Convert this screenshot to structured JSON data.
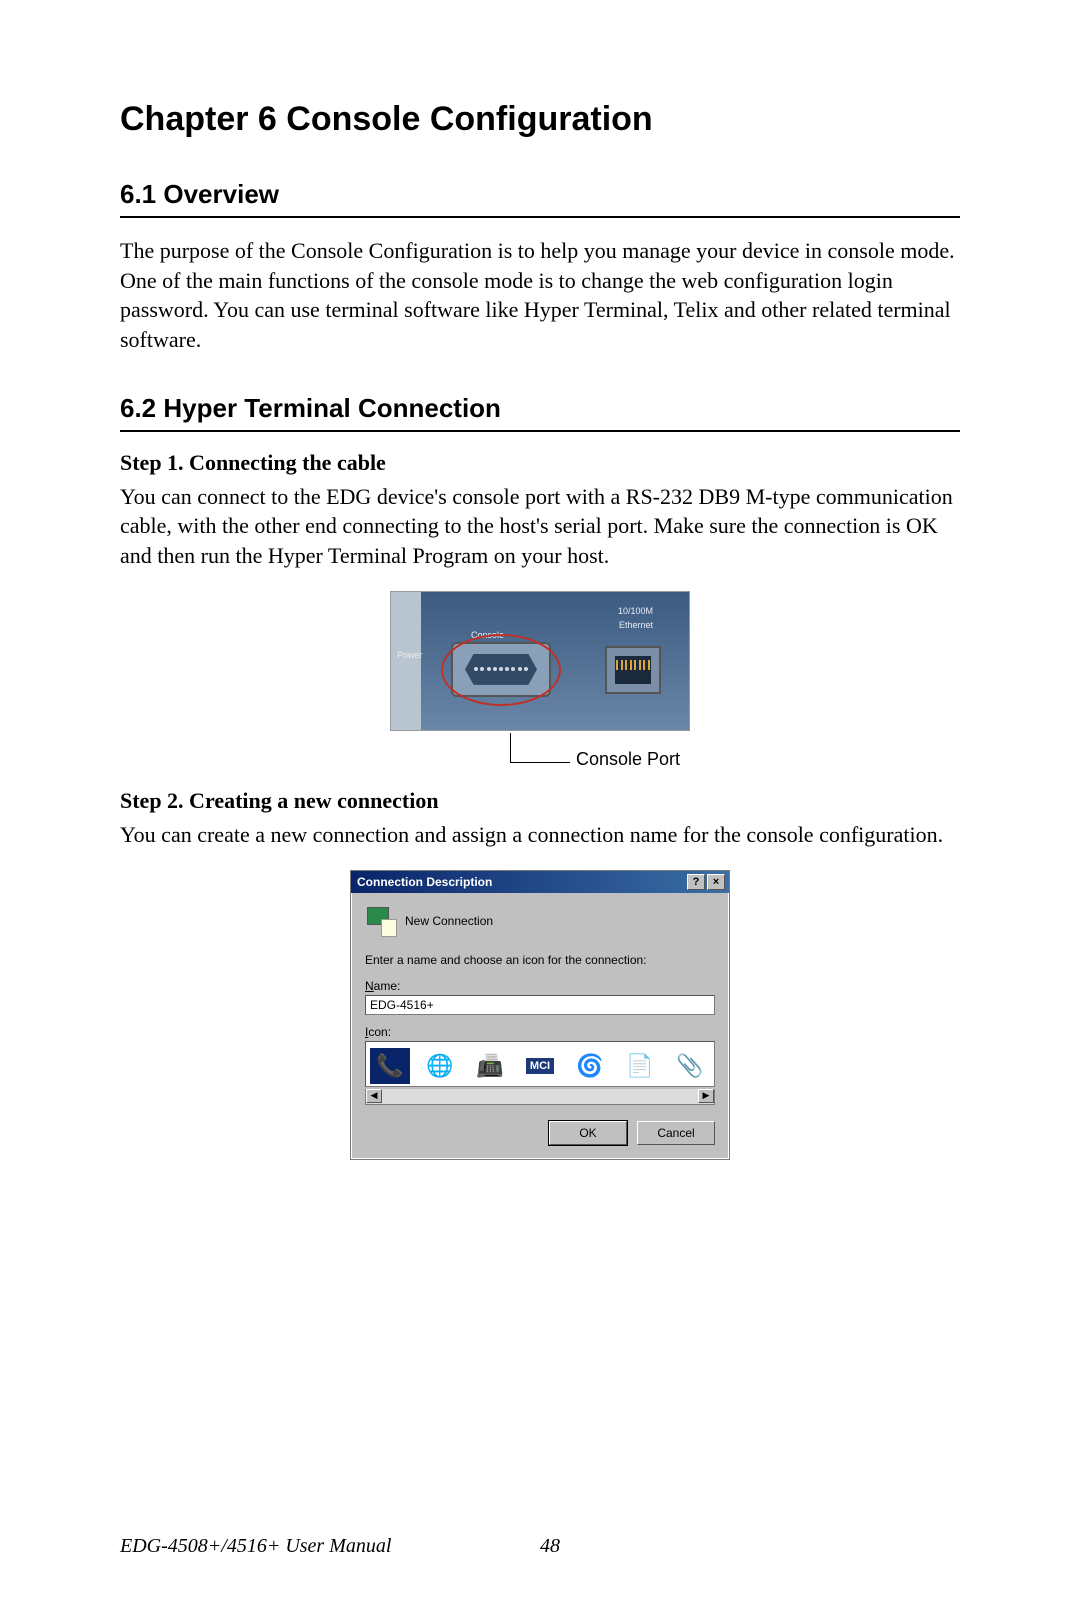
{
  "chapter": {
    "title": "Chapter 6  Console Configuration",
    "title_fontsize": 34,
    "title_weight": "bold"
  },
  "section_61": {
    "heading": "6.1  Overview",
    "text": "The purpose of the Console Configuration is to help you manage your device in console mode. One of the main functions of the console mode is to change the web configuration login password. You can use terminal software like Hyper Terminal, Telix and other related terminal software."
  },
  "section_62": {
    "heading": "6.2  Hyper Terminal Connection",
    "step1": {
      "title": "Step 1. Connecting the cable",
      "text": "You can connect to the EDG device's console port with a RS-232 DB9 M-type communication cable, with the other end connecting to the host's serial port. Make sure the connection is OK and then run the Hyper Terminal Program on your host."
    },
    "step2": {
      "title": "Step 2. Creating a new connection",
      "text": "You can create a new connection and assign a connection name for the console configuration."
    }
  },
  "hw_figure": {
    "background_color": "#3b5a80",
    "circle_color": "#c03028",
    "label_power": "Power",
    "label_console": "Console",
    "label_10100": "10/100M",
    "label_ethernet": "Ethernet",
    "callout": "Console Port"
  },
  "dialog": {
    "titlebar_bg_start": "#0a246a",
    "titlebar_bg_end": "#3a6ea5",
    "body_bg": "#c0c0c0",
    "title": "Connection Description",
    "help_btn": "?",
    "close_btn": "×",
    "subtitle": "New Connection",
    "prompt": "Enter a name and choose an icon for the connection:",
    "name_label_u": "N",
    "name_label_rest": "ame:",
    "name_value": "EDG-4516+",
    "icon_label_u": "I",
    "icon_label_rest": "con:",
    "icons": {
      "i1": "📞",
      "i2": "🌐",
      "i3": "📠",
      "i4_text": "MCI",
      "i5": "🌀",
      "i6": "📄",
      "i7": "📎"
    },
    "scroll_left": "◀",
    "scroll_right": "▶",
    "ok_label": "OK",
    "cancel_label": "Cancel"
  },
  "footer": {
    "manual": "EDG-4508+/4516+ User Manual",
    "page": "48"
  },
  "style": {
    "page_bg": "#ffffff",
    "text_color": "#000000",
    "body_font": "Times New Roman",
    "heading_font": "Arial",
    "section_border": "#000000"
  }
}
